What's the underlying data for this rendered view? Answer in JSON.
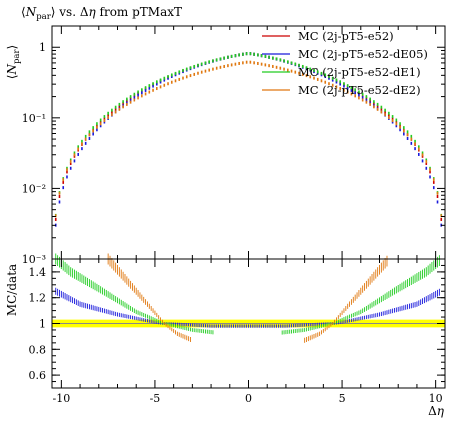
{
  "title": "⟨N_par⟩ vs. Δη from pTMaxT",
  "chart_data": [
    {
      "type": "scatter",
      "panel": "main",
      "ylabel": "⟨N_par⟩",
      "yscale": "log",
      "xlim": [
        -10.5,
        10.5
      ],
      "ylim": [
        0.001,
        2
      ],
      "y_tick_labels": [
        "10⁻³",
        "10⁻²",
        "10⁻¹",
        "1"
      ],
      "legend_position": "top-right",
      "series": [
        {
          "name": "MC (2j-pT5-e52)",
          "color": "#cc0000",
          "peak": 0.82,
          "shape": 0.055,
          "range": [
            -10.3,
            10.3
          ]
        },
        {
          "name": "MC (2j-pT5-e52-dE05)",
          "color": "#1a1adb",
          "peak": 0.82,
          "shape": 0.062,
          "range": [
            -10.3,
            10.3
          ]
        },
        {
          "name": "MC (2j-pT5-e52-dE1)",
          "color": "#22cc22",
          "peak": 0.82,
          "shape": 0.05,
          "range": [
            -10.3,
            10.3
          ]
        },
        {
          "name": "MC (2j-pT5-e52-dE2)",
          "color": "#e07810",
          "peak": 0.62,
          "shape": 0.04,
          "range": [
            -10.3,
            10.3
          ]
        }
      ]
    },
    {
      "type": "scatter",
      "panel": "ratio",
      "xlabel": "Δη",
      "ylabel": "MC/data",
      "xlim": [
        -10.5,
        10.5
      ],
      "ylim": [
        0.5,
        1.5
      ],
      "x_ticks": [
        -10,
        -5,
        0,
        5,
        10
      ],
      "y_ticks": [
        0.6,
        0.8,
        1,
        1.2,
        1.4
      ],
      "reference_band": {
        "color": "#ffff00",
        "center": 1.0,
        "half_width": 0.03
      },
      "series": [
        {
          "name": "MC (2j-pT5-e52)",
          "color": "#cc0000",
          "points": [
            [
              -4.5,
              1.0
            ],
            [
              4.5,
              1.0
            ]
          ]
        },
        {
          "name": "MC (2j-pT5-e52-dE05)",
          "color": "#1a1adb",
          "points": [
            [
              -10.3,
              1.25
            ],
            [
              -9,
              1.15
            ],
            [
              -7,
              1.07
            ],
            [
              -5,
              1.01
            ],
            [
              -4.5,
              1.0
            ],
            [
              -2,
              0.98
            ],
            [
              -1.2,
              0.98
            ],
            [
              1.2,
              0.98
            ],
            [
              2,
              0.98
            ],
            [
              4.5,
              1.0
            ],
            [
              5,
              1.01
            ],
            [
              7,
              1.07
            ],
            [
              9,
              1.15
            ],
            [
              10.3,
              1.25
            ]
          ]
        },
        {
          "name": "MC (2j-pT5-e52-dE1)",
          "color": "#22cc22",
          "points": [
            [
              -10.3,
              1.5
            ],
            [
              -9.5,
              1.4
            ],
            [
              -8,
              1.27
            ],
            [
              -6,
              1.09
            ],
            [
              -4.5,
              1.0
            ],
            [
              -3,
              0.95
            ],
            [
              -1.8,
              0.93
            ],
            [
              1.8,
              0.93
            ],
            [
              3,
              0.95
            ],
            [
              4.5,
              1.0
            ],
            [
              6,
              1.09
            ],
            [
              8,
              1.27
            ],
            [
              9.5,
              1.4
            ],
            [
              10.3,
              1.5
            ]
          ]
        },
        {
          "name": "MC (2j-pT5-e52-dE2)",
          "color": "#e07810",
          "points": [
            [
              -7.5,
              1.5
            ],
            [
              -6,
              1.25
            ],
            [
              -4.5,
              1.0
            ],
            [
              -3.8,
              0.92
            ],
            [
              -3,
              0.87
            ],
            [
              3,
              0.87
            ],
            [
              3.8,
              0.92
            ],
            [
              4.5,
              1.0
            ],
            [
              6,
              1.25
            ],
            [
              7.5,
              1.5
            ]
          ]
        }
      ]
    }
  ]
}
